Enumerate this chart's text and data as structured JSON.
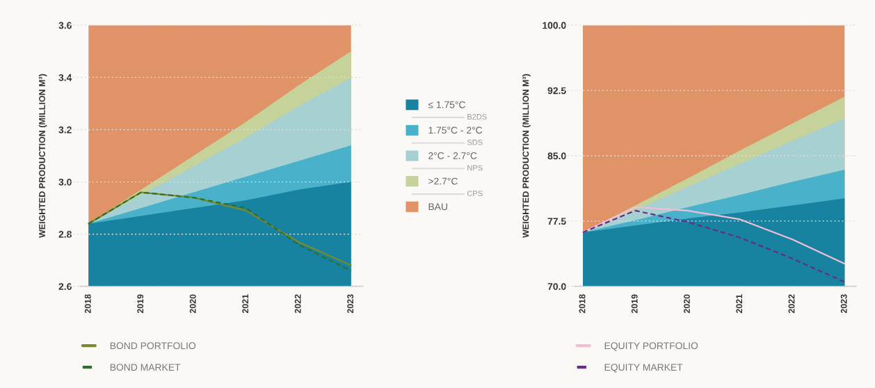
{
  "chart_data": [
    {
      "type": "area",
      "categories": [
        "2018",
        "2019",
        "2020",
        "2021",
        "2022",
        "2023"
      ],
      "ylabel": "WEIGHTED PRODUCTION (MILLION M³)",
      "ylim": [
        2.6,
        3.6
      ],
      "yticks": [
        2.6,
        2.8,
        {
          "value": 3.0,
          "label": "3.0"
        },
        3.2,
        3.4,
        3.6
      ],
      "grid": "y",
      "legend": "right",
      "series": [
        {
          "name": "≤ 1.75°C",
          "color": "#1783a0",
          "values": [
            2.84,
            2.87,
            2.9,
            2.93,
            2.97,
            3.0
          ]
        },
        {
          "name": "1.75°C - 2°C",
          "color": "#4ab1cb",
          "values": [
            2.84,
            2.9,
            2.96,
            3.02,
            3.08,
            3.14
          ]
        },
        {
          "name": "2°C - 2.7°C",
          "color": "#a6d0d1",
          "values": [
            2.84,
            2.95,
            3.06,
            3.17,
            3.29,
            3.4
          ]
        },
        {
          "name": ">2.7°C",
          "color": "#c5d39b",
          "values": [
            2.84,
            2.97,
            3.1,
            3.23,
            3.37,
            3.5
          ]
        },
        {
          "name": "BAU",
          "color": "#e09367",
          "values": [
            3.6,
            3.6,
            3.6,
            3.6,
            3.6,
            3.6
          ]
        },
        {
          "type": "line",
          "name": "BOND PORTFOLIO",
          "color": "#7a8a2a",
          "line_style": "solid",
          "values": [
            2.84,
            2.96,
            2.94,
            2.89,
            2.77,
            2.68
          ]
        },
        {
          "type": "line",
          "name": "BOND MARKET",
          "color": "#2e6e2e",
          "line_style": "dashed",
          "values": [
            2.84,
            2.96,
            2.94,
            2.9,
            2.76,
            2.66
          ]
        }
      ],
      "annotations": [
        "B2DS",
        "SDS",
        "NPS",
        "CPS"
      ]
    },
    {
      "type": "area",
      "categories": [
        "2018",
        "2019",
        "2020",
        "2021",
        "2022",
        "2023"
      ],
      "ylabel": "WEIGHTED PRODUCTION (MILLION M³)",
      "ylim": [
        70.0,
        100.0
      ],
      "yticks": [
        {
          "value": 70,
          "label": "70.0"
        },
        77.5,
        {
          "value": 85,
          "label": "85.0"
        },
        92.5,
        {
          "value": 100,
          "label": "100.0"
        }
      ],
      "grid": "y",
      "legend": "bottom",
      "series": [
        {
          "color": "#1783a0",
          "values": [
            76.2,
            77.0,
            77.8,
            78.5,
            79.3,
            80.1
          ]
        },
        {
          "color": "#4ab1cb",
          "values": [
            76.2,
            77.6,
            79.1,
            80.5,
            82.0,
            83.4
          ]
        },
        {
          "color": "#a6d0d1",
          "values": [
            76.2,
            78.8,
            81.4,
            84.1,
            86.7,
            89.3
          ]
        },
        {
          "color": "#c5d39b",
          "values": [
            76.2,
            79.3,
            82.4,
            85.6,
            88.7,
            91.8
          ]
        },
        {
          "color": "#e09367",
          "values": [
            100,
            100,
            100,
            100,
            100,
            100
          ]
        },
        {
          "type": "line",
          "name": "EQUITY PORTFOLIO",
          "color": "#efbfd6",
          "line_style": "solid",
          "values": [
            76.2,
            79.1,
            78.7,
            77.7,
            75.4,
            72.6
          ]
        },
        {
          "type": "line",
          "name": "EQUITY MARKET",
          "color": "#6a2a8a",
          "line_style": "dashed",
          "values": [
            76.2,
            78.7,
            77.4,
            75.6,
            73.2,
            70.5
          ]
        }
      ]
    }
  ]
}
